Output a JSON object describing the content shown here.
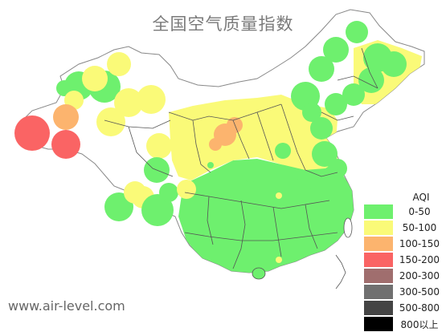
{
  "title": "全国空气质量指数",
  "source": "www.air-level.com",
  "legend": {
    "title": "AQI",
    "items": [
      {
        "label": "0-50",
        "color": "#6ef06e"
      },
      {
        "label": "50-100",
        "color": "#fafa78"
      },
      {
        "label": "100-150",
        "color": "#fcb46e"
      },
      {
        "label": "150-200",
        "color": "#fa6464"
      },
      {
        "label": "200-300",
        "color": "#a06e6e"
      },
      {
        "label": "300-500",
        "color": "#707070"
      },
      {
        "label": "500-800",
        "color": "#444444"
      },
      {
        "label": "800以上",
        "color": "#000000"
      }
    ]
  },
  "colors": {
    "border": "#555555",
    "background": "#ffffff"
  }
}
